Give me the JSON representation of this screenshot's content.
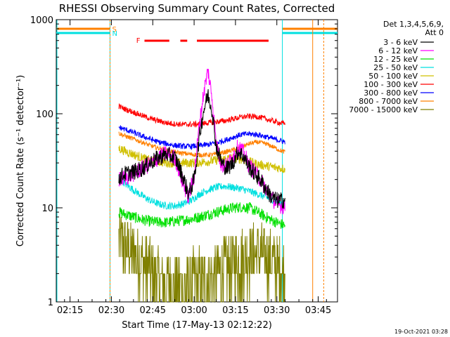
{
  "chart_data": {
    "type": "line",
    "title": "RHESSI Observing Summary Count Rates, Corrected",
    "xlabel": "Start Time (17-May-13 02:12:22)",
    "ylabel": "Corrected Count Rate (s⁻¹ detector⁻¹)",
    "yscale": "log",
    "ylim": [
      1,
      1000
    ],
    "xlim_minutes_after_start": [
      -3,
      99
    ],
    "xticks": [
      {
        "t": 2,
        "label": "02:15"
      },
      {
        "t": 17,
        "label": "02:30"
      },
      {
        "t": 32,
        "label": "02:45"
      },
      {
        "t": 47,
        "label": "03:00"
      },
      {
        "t": 62,
        "label": "03:15"
      },
      {
        "t": 77,
        "label": "03:30"
      },
      {
        "t": 92,
        "label": "03:45"
      }
    ],
    "yticks": [
      {
        "v": 1,
        "label": "1"
      },
      {
        "v": 10,
        "label": "10"
      },
      {
        "v": 100,
        "label": "100"
      },
      {
        "v": 1000,
        "label": "1000"
      }
    ],
    "legend_header": [
      "Det 1,3,4,5,6,9,",
      "Att 0"
    ],
    "series": [
      {
        "name": "3 - 6 keV",
        "color": "#000000",
        "points": [
          [
            19.7,
            21
          ],
          [
            22,
            23
          ],
          [
            25,
            24
          ],
          [
            28,
            26
          ],
          [
            31,
            30
          ],
          [
            34,
            34
          ],
          [
            37,
            37
          ],
          [
            40,
            34
          ],
          [
            41,
            30
          ],
          [
            43,
            21
          ],
          [
            45,
            14
          ],
          [
            47,
            20
          ],
          [
            49,
            60
          ],
          [
            50.5,
            110
          ],
          [
            52,
            160
          ],
          [
            53.5,
            110
          ],
          [
            55,
            45
          ],
          [
            57,
            30
          ],
          [
            59,
            26
          ],
          [
            61,
            30
          ],
          [
            63,
            40
          ],
          [
            65,
            35
          ],
          [
            67,
            27
          ],
          [
            69,
            23
          ],
          [
            71,
            20
          ],
          [
            73,
            16
          ],
          [
            75,
            13
          ],
          [
            77,
            12
          ],
          [
            79,
            12
          ],
          [
            80,
            12
          ]
        ]
      },
      {
        "name": "6 - 12 keV",
        "color": "#ff00ff",
        "points": [
          [
            19.7,
            20
          ],
          [
            22,
            21
          ],
          [
            25,
            23
          ],
          [
            28,
            26
          ],
          [
            31,
            29
          ],
          [
            34,
            34
          ],
          [
            37,
            38
          ],
          [
            40,
            34
          ],
          [
            41,
            28
          ],
          [
            43,
            18
          ],
          [
            45,
            13
          ],
          [
            47,
            22
          ],
          [
            49,
            80
          ],
          [
            50.5,
            170
          ],
          [
            52,
            290
          ],
          [
            53.5,
            150
          ],
          [
            55,
            48
          ],
          [
            57,
            28
          ],
          [
            59,
            28
          ],
          [
            61,
            35
          ],
          [
            63,
            45
          ],
          [
            65,
            38
          ],
          [
            67,
            28
          ],
          [
            69,
            24
          ],
          [
            71,
            20
          ],
          [
            73,
            16
          ],
          [
            75,
            13
          ],
          [
            77,
            11
          ],
          [
            79,
            10.5
          ],
          [
            80,
            10
          ]
        ]
      },
      {
        "name": "12 - 25 keV",
        "color": "#00e000",
        "points": [
          [
            19.7,
            9
          ],
          [
            22,
            8.5
          ],
          [
            25,
            8
          ],
          [
            28,
            7.5
          ],
          [
            31,
            7.2
          ],
          [
            34,
            7
          ],
          [
            37,
            7
          ],
          [
            40,
            7.2
          ],
          [
            43,
            7.4
          ],
          [
            46,
            7.6
          ],
          [
            49,
            8
          ],
          [
            52,
            8.5
          ],
          [
            55,
            9
          ],
          [
            58,
            9.5
          ],
          [
            61,
            10
          ],
          [
            64,
            10.2
          ],
          [
            67,
            10
          ],
          [
            70,
            9
          ],
          [
            73,
            8
          ],
          [
            76,
            7.2
          ],
          [
            78,
            6.8
          ],
          [
            80,
            6.5
          ]
        ]
      },
      {
        "name": "25 - 50 keV",
        "color": "#00e0e0",
        "points": [
          [
            19.7,
            21
          ],
          [
            22,
            18
          ],
          [
            25,
            15.5
          ],
          [
            28,
            13.5
          ],
          [
            31,
            12
          ],
          [
            34,
            11
          ],
          [
            37,
            10.5
          ],
          [
            40,
            10.5
          ],
          [
            43,
            11
          ],
          [
            46,
            12
          ],
          [
            49,
            14
          ],
          [
            52,
            15.5
          ],
          [
            55,
            16.5
          ],
          [
            58,
            17
          ],
          [
            61,
            16.5
          ],
          [
            64,
            16
          ],
          [
            67,
            15
          ],
          [
            70,
            14
          ],
          [
            73,
            13
          ],
          [
            76,
            12
          ],
          [
            78,
            11.5
          ],
          [
            80,
            11
          ]
        ]
      },
      {
        "name": "50 - 100 keV",
        "color": "#d0c000",
        "points": [
          [
            19.7,
            43
          ],
          [
            22,
            40
          ],
          [
            25,
            37
          ],
          [
            28,
            34
          ],
          [
            31,
            32
          ],
          [
            34,
            31
          ],
          [
            37,
            30
          ],
          [
            40,
            30
          ],
          [
            43,
            30
          ],
          [
            46,
            30
          ],
          [
            49,
            30.5
          ],
          [
            52,
            31
          ],
          [
            55,
            32
          ],
          [
            58,
            33
          ],
          [
            61,
            34
          ],
          [
            64,
            33
          ],
          [
            67,
            31
          ],
          [
            70,
            29
          ],
          [
            73,
            28
          ],
          [
            76,
            27
          ],
          [
            78,
            26.5
          ],
          [
            80,
            26
          ]
        ]
      },
      {
        "name": "100 - 300 keV",
        "color": "#ff0000",
        "points": [
          [
            19.7,
            120
          ],
          [
            22,
            112
          ],
          [
            25,
            104
          ],
          [
            28,
            96
          ],
          [
            31,
            89
          ],
          [
            34,
            84
          ],
          [
            37,
            80
          ],
          [
            40,
            78
          ],
          [
            43,
            77
          ],
          [
            46,
            77
          ],
          [
            49,
            78
          ],
          [
            52,
            80
          ],
          [
            55,
            82
          ],
          [
            58,
            84
          ],
          [
            61,
            88
          ],
          [
            64,
            92
          ],
          [
            67,
            94
          ],
          [
            70,
            93
          ],
          [
            73,
            88
          ],
          [
            76,
            83
          ],
          [
            78,
            80
          ],
          [
            80,
            78
          ]
        ]
      },
      {
        "name": "300 - 800 keV",
        "color": "#0000ff",
        "points": [
          [
            19.7,
            72
          ],
          [
            22,
            68
          ],
          [
            25,
            63
          ],
          [
            28,
            58
          ],
          [
            31,
            54
          ],
          [
            34,
            50
          ],
          [
            37,
            48
          ],
          [
            40,
            46
          ],
          [
            43,
            45
          ],
          [
            46,
            45
          ],
          [
            49,
            46
          ],
          [
            52,
            47
          ],
          [
            55,
            49
          ],
          [
            58,
            52
          ],
          [
            61,
            56
          ],
          [
            64,
            60
          ],
          [
            67,
            61
          ],
          [
            70,
            60
          ],
          [
            73,
            57
          ],
          [
            76,
            54
          ],
          [
            78,
            52
          ],
          [
            80,
            50
          ]
        ]
      },
      {
        "name": "800 - 7000 keV",
        "color": "#ff8000",
        "points": [
          [
            19.7,
            62
          ],
          [
            22,
            58
          ],
          [
            25,
            54
          ],
          [
            28,
            50
          ],
          [
            31,
            46
          ],
          [
            34,
            43
          ],
          [
            37,
            41
          ],
          [
            40,
            39
          ],
          [
            43,
            38
          ],
          [
            46,
            37
          ],
          [
            49,
            36.5
          ],
          [
            52,
            36.5
          ],
          [
            55,
            37
          ],
          [
            58,
            39
          ],
          [
            61,
            41
          ],
          [
            64,
            44
          ],
          [
            67,
            48
          ],
          [
            70,
            50
          ],
          [
            73,
            48
          ],
          [
            76,
            44
          ],
          [
            78,
            41
          ],
          [
            80,
            39
          ]
        ]
      },
      {
        "name": "7000 - 15000 keV",
        "color": "#808000",
        "points": [
          [
            19.7,
            4.5
          ],
          [
            22,
            3.8
          ],
          [
            25,
            3.2
          ],
          [
            28,
            2.6
          ],
          [
            31,
            2.2
          ],
          [
            34,
            1.8
          ],
          [
            37,
            1.6
          ],
          [
            40,
            1.5
          ],
          [
            43,
            1.5
          ],
          [
            46,
            1.6
          ],
          [
            49,
            1.7
          ],
          [
            52,
            1.8
          ],
          [
            55,
            2
          ],
          [
            58,
            2.2
          ],
          [
            61,
            2.5
          ],
          [
            64,
            2.8
          ],
          [
            67,
            3.1
          ],
          [
            70,
            3.2
          ],
          [
            73,
            3
          ],
          [
            76,
            2.6
          ],
          [
            78,
            2.3
          ],
          [
            80,
            2
          ]
        ]
      }
    ],
    "annotations": [
      {
        "text": "S",
        "color": "#ff8000"
      },
      {
        "text": "N",
        "color": "#00e0e0"
      },
      {
        "text": "F",
        "color": "#ff0000"
      }
    ],
    "night_intervals": [
      [
        -3,
        16.5
      ],
      [
        79,
        99
      ]
    ],
    "saa_marks": [
      16.5,
      94
    ],
    "flare_segments": [
      [
        29,
        38
      ],
      [
        42,
        44.5
      ],
      [
        48,
        74
      ]
    ],
    "timestamp": "19-Oct-2021 03:28"
  }
}
